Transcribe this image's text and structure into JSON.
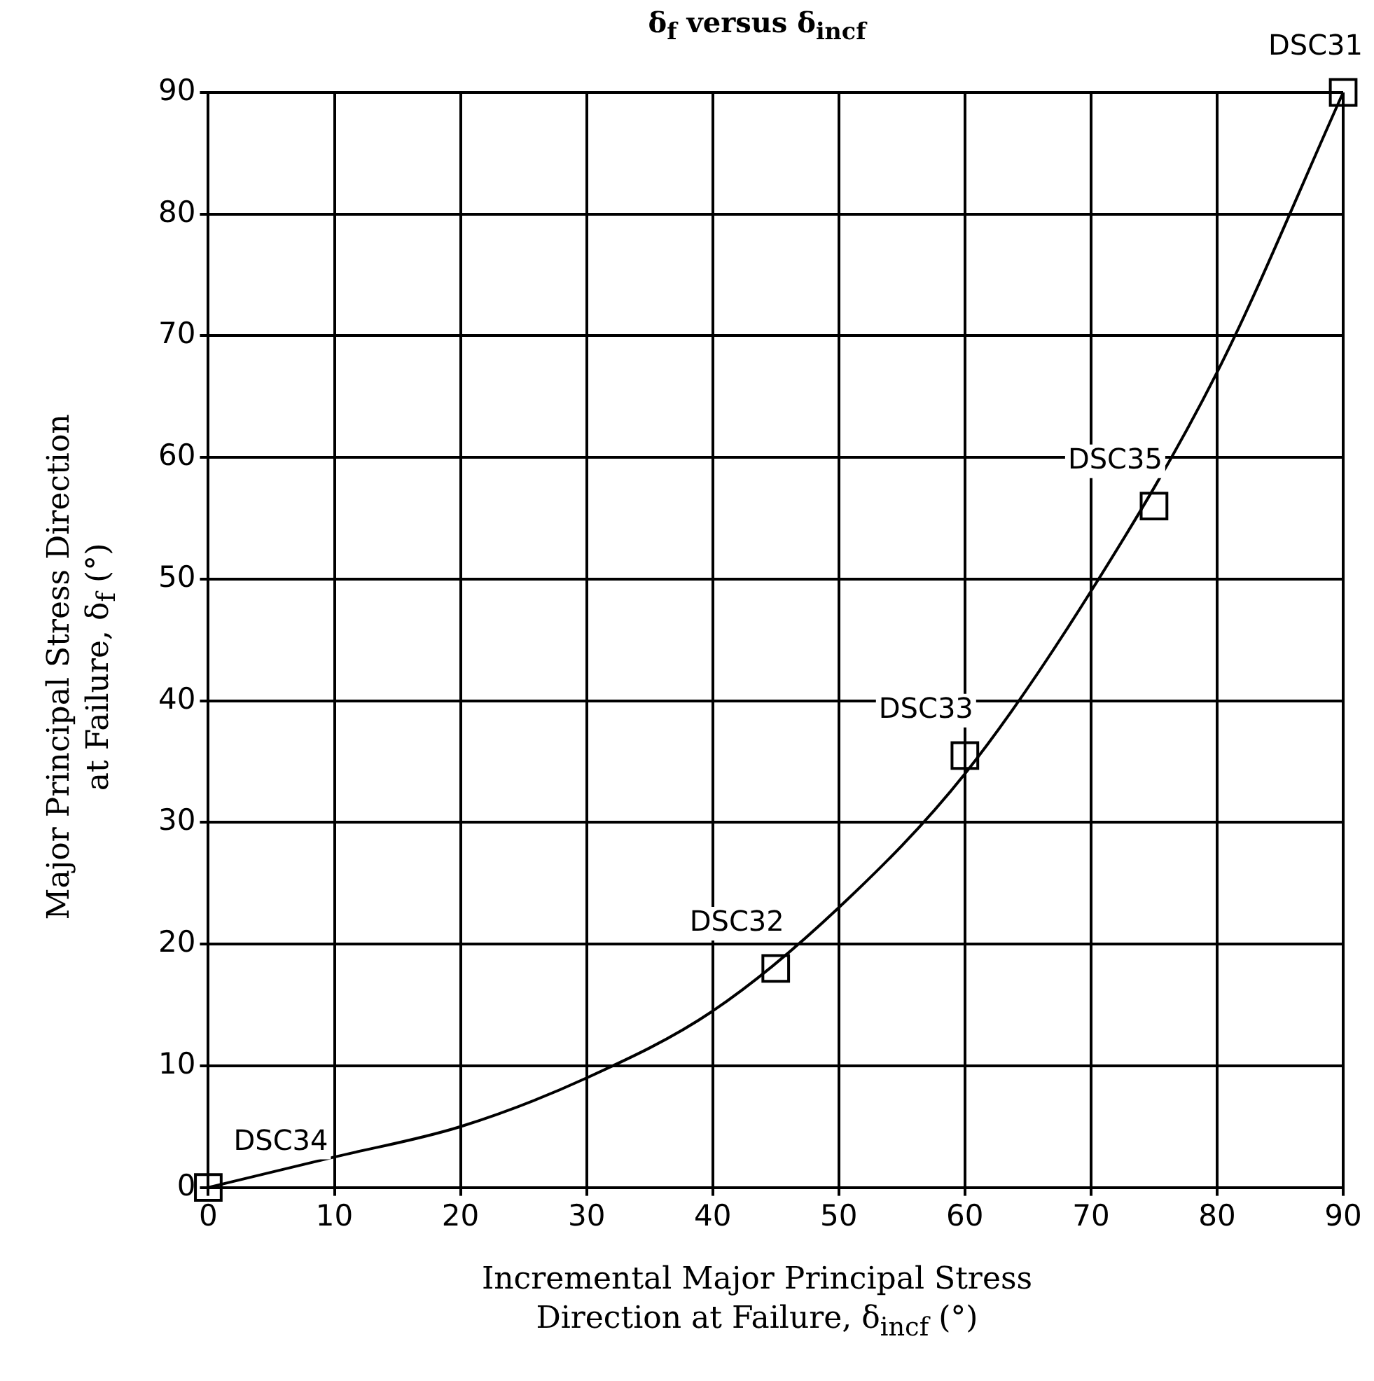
{
  "chart_data": {
    "type": "scatter",
    "title": "δ$_{f}$ versus δ$_{incf}$",
    "xlabel": "Incremental Major Principal Stress\nDirection at Failure, δ$_{incf}$ (°)",
    "ylabel": "Major Principal Stress Direction\nat Failure, δ$_{f}$ (°)",
    "xlim": [
      0,
      90
    ],
    "ylim": [
      0,
      90
    ],
    "xticks": [
      0,
      10,
      20,
      30,
      40,
      50,
      60,
      70,
      80,
      90
    ],
    "yticks": [
      0,
      10,
      20,
      30,
      40,
      50,
      60,
      70,
      80,
      90
    ],
    "grid": true,
    "series": [
      {
        "type": "line",
        "color": "#000000",
        "marker": "none",
        "x": [
          0,
          10,
          20,
          30,
          40,
          50,
          60,
          70,
          80,
          90
        ],
        "values": [
          0,
          2.5,
          5,
          9,
          14.5,
          23,
          34,
          49,
          67,
          90
        ]
      },
      {
        "color": "#000000",
        "marker": "square",
        "x": [
          0,
          45,
          60,
          75,
          90
        ],
        "values": [
          0,
          18,
          35.5,
          56,
          90
        ]
      }
    ],
    "annotations": [
      {
        "text": "DSC34",
        "x": 0,
        "y": 0
      },
      {
        "text": "DSC32",
        "x": 45,
        "y": 18
      },
      {
        "text": "DSC33",
        "x": 60,
        "y": 35.5
      },
      {
        "text": "DSC35",
        "x": 75,
        "y": 56
      },
      {
        "text": "DSC31",
        "x": 90,
        "y": 90
      }
    ]
  }
}
